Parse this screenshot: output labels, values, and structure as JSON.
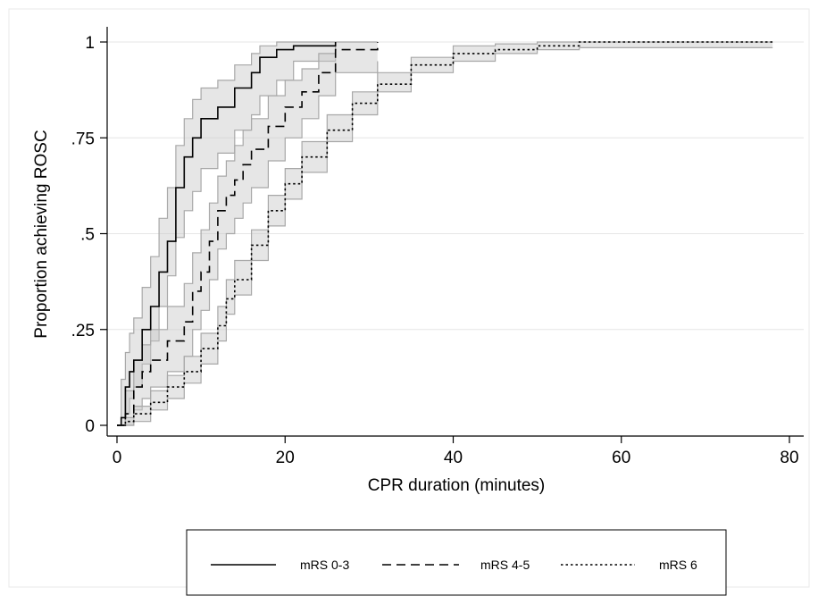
{
  "chart_data": {
    "type": "line",
    "title": "",
    "xlabel": "CPR duration (minutes)",
    "ylabel": "Proportion achieving ROSC",
    "xlim": [
      0,
      80
    ],
    "ylim": [
      0,
      1
    ],
    "xticks": [
      0,
      20,
      40,
      60,
      80
    ],
    "yticks": [
      0,
      0.25,
      0.5,
      0.75,
      1
    ],
    "ytick_labels": [
      "0",
      ".25",
      ".5",
      ".75",
      "1"
    ],
    "grid": "horizontal",
    "legend_position": "bottom",
    "series": [
      {
        "name": "mRS 0-3",
        "line_style": "solid",
        "color": "#000000",
        "step": true,
        "x": [
          0,
          0.5,
          1,
          1.5,
          2,
          3,
          4,
          5,
          6,
          7,
          8,
          9,
          10,
          12,
          14,
          16,
          17,
          19,
          21,
          26
        ],
        "y": [
          0,
          0.02,
          0.1,
          0.14,
          0.17,
          0.25,
          0.31,
          0.4,
          0.48,
          0.62,
          0.7,
          0.75,
          0.8,
          0.83,
          0.88,
          0.92,
          0.96,
          0.98,
          0.99,
          1.0
        ],
        "ci_lower": [
          0,
          0,
          0.03,
          0.07,
          0.1,
          0.16,
          0.22,
          0.31,
          0.39,
          0.49,
          0.56,
          0.61,
          0.67,
          0.71,
          0.77,
          0.81,
          0.86,
          0.9,
          0.95,
          0.97
        ],
        "ci_upper": [
          0,
          0.12,
          0.19,
          0.24,
          0.28,
          0.36,
          0.44,
          0.54,
          0.62,
          0.73,
          0.8,
          0.85,
          0.88,
          0.9,
          0.94,
          0.97,
          0.99,
          1.0,
          1.0,
          1.0
        ]
      },
      {
        "name": "mRS 4-5",
        "line_style": "dashed",
        "color": "#000000",
        "step": true,
        "x": [
          0,
          1,
          2,
          3,
          4,
          6,
          8,
          9,
          10,
          11,
          12,
          13,
          14,
          15,
          16,
          18,
          20,
          22,
          24,
          26,
          31
        ],
        "y": [
          0,
          0.03,
          0.1,
          0.14,
          0.17,
          0.22,
          0.27,
          0.35,
          0.4,
          0.48,
          0.56,
          0.6,
          0.64,
          0.68,
          0.72,
          0.78,
          0.83,
          0.87,
          0.92,
          0.98,
          1.0
        ],
        "ci_lower": [
          0,
          0,
          0.04,
          0.07,
          0.1,
          0.14,
          0.18,
          0.25,
          0.3,
          0.38,
          0.46,
          0.5,
          0.54,
          0.58,
          0.62,
          0.69,
          0.75,
          0.8,
          0.86,
          0.92,
          0.95
        ],
        "ci_upper": [
          0,
          0.09,
          0.17,
          0.21,
          0.25,
          0.31,
          0.37,
          0.45,
          0.51,
          0.58,
          0.65,
          0.69,
          0.73,
          0.77,
          0.8,
          0.86,
          0.9,
          0.93,
          0.97,
          1.0,
          1.0
        ]
      },
      {
        "name": "mRS 6",
        "line_style": "dotted",
        "color": "#000000",
        "step": true,
        "x": [
          0,
          1,
          2,
          4,
          6,
          8,
          10,
          12,
          13,
          14,
          16,
          18,
          20,
          22,
          25,
          28,
          31,
          35,
          40,
          45,
          50,
          55,
          60,
          70,
          78
        ],
        "y": [
          0,
          0.01,
          0.03,
          0.06,
          0.1,
          0.14,
          0.2,
          0.26,
          0.33,
          0.38,
          0.47,
          0.56,
          0.63,
          0.7,
          0.77,
          0.84,
          0.89,
          0.94,
          0.97,
          0.98,
          0.99,
          1.0,
          1.0,
          1.0,
          1.0
        ],
        "ci_lower": [
          0,
          0,
          0.01,
          0.04,
          0.07,
          0.11,
          0.16,
          0.22,
          0.29,
          0.34,
          0.43,
          0.52,
          0.59,
          0.66,
          0.74,
          0.81,
          0.87,
          0.92,
          0.95,
          0.97,
          0.98,
          0.985,
          0.985,
          0.985,
          0.985
        ],
        "ci_upper": [
          0,
          0.02,
          0.05,
          0.09,
          0.13,
          0.18,
          0.24,
          0.31,
          0.38,
          0.43,
          0.51,
          0.6,
          0.67,
          0.74,
          0.81,
          0.87,
          0.92,
          0.96,
          0.99,
          0.995,
          1.0,
          1.0,
          1.0,
          1.0,
          1.0
        ]
      }
    ]
  },
  "colors": {
    "ci_band": "#c8c8c8",
    "ci_band_edge": "#a8a8a8",
    "gridline": "#e6e6e6",
    "axis": "#000000"
  }
}
